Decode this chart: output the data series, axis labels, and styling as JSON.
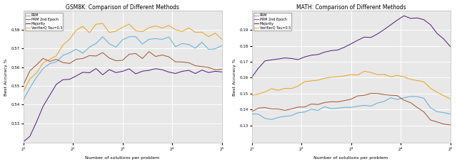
{
  "gsm8k": {
    "title": "GSM8K: Comparison of Different Methods",
    "ylabel": "Best Accuracy %",
    "xlabel": "Number of solutions per problem",
    "ylim": [
      0.5195,
      0.59
    ],
    "yticks": [
      0.53,
      0.54,
      0.55,
      0.56,
      0.57,
      0.58
    ],
    "legend_tau": "VerifierQ Tau=0.3",
    "series": {
      "PRM": {
        "color": "#5BADD6",
        "data": [
          0.542,
          0.549,
          0.554,
          0.558,
          0.562,
          0.563,
          0.565,
          0.567,
          0.57,
          0.567,
          0.571,
          0.573,
          0.576,
          0.574,
          0.572,
          0.575,
          0.577,
          0.576,
          0.573,
          0.576,
          0.574,
          0.575,
          0.576,
          0.572,
          0.573,
          0.572,
          0.571,
          0.573,
          0.57,
          0.57,
          0.572
        ]
      },
      "PRM 2nd Epoch": {
        "color": "#A0522D",
        "data": [
          0.549,
          0.558,
          0.562,
          0.564,
          0.564,
          0.564,
          0.564,
          0.563,
          0.564,
          0.564,
          0.566,
          0.566,
          0.568,
          0.566,
          0.564,
          0.564,
          0.566,
          0.567,
          0.566,
          0.568,
          0.566,
          0.567,
          0.565,
          0.562,
          0.562,
          0.563,
          0.561,
          0.56,
          0.559,
          0.559,
          0.559
        ]
      },
      "Majority": {
        "color": "#4B1A7E",
        "data": [
          0.521,
          0.524,
          0.53,
          0.538,
          0.545,
          0.55,
          0.553,
          0.554,
          0.555,
          0.556,
          0.557,
          0.558,
          0.558,
          0.558,
          0.557,
          0.558,
          0.559,
          0.558,
          0.558,
          0.558,
          0.558,
          0.559,
          0.558,
          0.557,
          0.557,
          0.558,
          0.557,
          0.558,
          0.557,
          0.557,
          0.558
        ]
      },
      "VerifierQ": {
        "color": "#E8A020",
        "data": [
          0.547,
          0.554,
          0.558,
          0.562,
          0.564,
          0.566,
          0.572,
          0.576,
          0.58,
          0.582,
          0.579,
          0.583,
          0.583,
          0.577,
          0.579,
          0.581,
          0.583,
          0.581,
          0.579,
          0.581,
          0.58,
          0.581,
          0.582,
          0.58,
          0.58,
          0.58,
          0.578,
          0.578,
          0.577,
          0.577,
          0.576
        ]
      }
    }
  },
  "math": {
    "title": "MATH: Comparison of Different Methods",
    "ylabel": "Best Accuracy %",
    "xlabel": "Number of solutions per problem",
    "ylim": [
      0.119,
      0.202
    ],
    "yticks": [
      0.13,
      0.14,
      0.15,
      0.16,
      0.17,
      0.18,
      0.19
    ],
    "legend_tau": "VerifierQ Tau=0.5",
    "series": {
      "PRM": {
        "color": "#5BADD6",
        "data": [
          0.137,
          0.136,
          0.135,
          0.134,
          0.135,
          0.136,
          0.137,
          0.138,
          0.139,
          0.14,
          0.14,
          0.141,
          0.141,
          0.141,
          0.141,
          0.142,
          0.142,
          0.142,
          0.143,
          0.144,
          0.145,
          0.147,
          0.147,
          0.148,
          0.148,
          0.148,
          0.147,
          0.141,
          0.139,
          0.138,
          0.137
        ]
      },
      "PRM 2nd Epoch": {
        "color": "#A0522D",
        "data": [
          0.139,
          0.14,
          0.141,
          0.141,
          0.14,
          0.14,
          0.14,
          0.141,
          0.142,
          0.143,
          0.143,
          0.144,
          0.144,
          0.145,
          0.146,
          0.147,
          0.149,
          0.149,
          0.15,
          0.15,
          0.149,
          0.149,
          0.148,
          0.146,
          0.143,
          0.141,
          0.139,
          0.134,
          0.132,
          0.131,
          0.13
        ]
      },
      "Majority": {
        "color": "#4B1A7E",
        "data": [
          0.16,
          0.166,
          0.171,
          0.172,
          0.172,
          0.172,
          0.172,
          0.172,
          0.173,
          0.174,
          0.175,
          0.176,
          0.177,
          0.178,
          0.179,
          0.181,
          0.183,
          0.185,
          0.186,
          0.188,
          0.19,
          0.193,
          0.196,
          0.197,
          0.197,
          0.197,
          0.196,
          0.193,
          0.188,
          0.184,
          0.18
        ]
      },
      "VerifierQ": {
        "color": "#E8A020",
        "data": [
          0.149,
          0.15,
          0.151,
          0.152,
          0.153,
          0.153,
          0.154,
          0.155,
          0.157,
          0.158,
          0.159,
          0.16,
          0.16,
          0.161,
          0.161,
          0.162,
          0.162,
          0.163,
          0.163,
          0.163,
          0.162,
          0.161,
          0.161,
          0.161,
          0.159,
          0.158,
          0.157,
          0.154,
          0.151,
          0.149,
          0.147
        ]
      }
    }
  }
}
